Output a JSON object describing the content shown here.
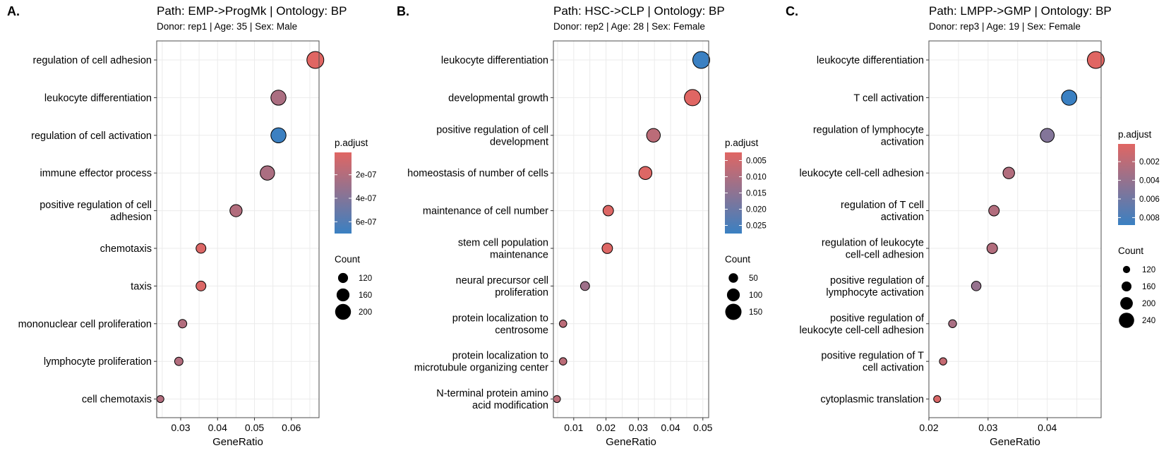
{
  "chart_data": [
    {
      "type": "scatter",
      "panel_label": "A.",
      "title": "Path:  EMP->ProgMk | Ontology:  BP",
      "subtitle": "Donor: rep1 | Age: 35 | Sex: Male",
      "xlabel": "GeneRatio",
      "xlim": [
        0.0235,
        0.0675
      ],
      "xticks": [
        0.03,
        0.04,
        0.05,
        0.06
      ],
      "xtick_labels": [
        "0.03",
        "0.04",
        "0.05",
        "0.06"
      ],
      "terms": [
        {
          "label": [
            "regulation of cell adhesion"
          ],
          "x": 0.0665,
          "count": 215,
          "p": 1e-08
        },
        {
          "label": [
            "leukocyte differentiation"
          ],
          "x": 0.0565,
          "count": 190,
          "p": 2.3e-07
        },
        {
          "label": [
            "regulation of cell activation"
          ],
          "x": 0.0565,
          "count": 190,
          "p": 6.9e-07
        },
        {
          "label": [
            "immune effector process"
          ],
          "x": 0.0535,
          "count": 180,
          "p": 2.3e-07
        },
        {
          "label": [
            "positive regulation of cell",
            "adhesion"
          ],
          "x": 0.045,
          "count": 150,
          "p": 2e-07
        },
        {
          "label": [
            "chemotaxis"
          ],
          "x": 0.0355,
          "count": 118,
          "p": 3e-08
        },
        {
          "label": [
            "taxis"
          ],
          "x": 0.0355,
          "count": 118,
          "p": 3e-08
        },
        {
          "label": [
            "mononuclear cell proliferation"
          ],
          "x": 0.0305,
          "count": 100,
          "p": 2e-07
        },
        {
          "label": [
            "lymphocyte proliferation"
          ],
          "x": 0.0295,
          "count": 98,
          "p": 2e-07
        },
        {
          "label": [
            "cell chemotaxis"
          ],
          "x": 0.0245,
          "count": 80,
          "p": 2e-07
        }
      ],
      "color_legend": {
        "title": "p.adjust",
        "min": 1e-08,
        "max": 7e-07,
        "ticks": [
          2e-07,
          4e-07,
          6e-07
        ],
        "tick_labels": [
          "2e-07",
          "4e-07",
          "6e-07"
        ]
      },
      "size_legend": {
        "title": "Count",
        "values": [
          120,
          160,
          200
        ],
        "labels": [
          "120",
          "160",
          "200"
        ],
        "range": [
          80,
          215
        ]
      }
    },
    {
      "type": "scatter",
      "panel_label": "B.",
      "title": "Path:  HSC->CLP | Ontology:  BP",
      "subtitle": "Donor: rep2 | Age: 28 | Sex: Female",
      "xlabel": "GeneRatio",
      "xlim": [
        0.0037,
        0.0518
      ],
      "xticks": [
        0.01,
        0.02,
        0.03,
        0.04,
        0.05
      ],
      "xtick_labels": [
        "0.01",
        "0.02",
        "0.03",
        "0.04",
        "0.05"
      ],
      "terms": [
        {
          "label": [
            "leukocyte differentiation"
          ],
          "x": 0.0495,
          "count": 160,
          "p": 0.0275
        },
        {
          "label": [
            "developmental growth"
          ],
          "x": 0.0468,
          "count": 150,
          "p": 0.0025
        },
        {
          "label": [
            "positive regulation of cell",
            "development"
          ],
          "x": 0.0347,
          "count": 112,
          "p": 0.008
        },
        {
          "label": [
            "homeostasis of number of cells"
          ],
          "x": 0.0322,
          "count": 103,
          "p": 0.003
        },
        {
          "label": [
            "maintenance of cell number"
          ],
          "x": 0.0207,
          "count": 65,
          "p": 0.003
        },
        {
          "label": [
            "stem cell population",
            "maintenance"
          ],
          "x": 0.0204,
          "count": 65,
          "p": 0.003
        },
        {
          "label": [
            "neural precursor cell",
            "proliferation"
          ],
          "x": 0.0135,
          "count": 44,
          "p": 0.0125
        },
        {
          "label": [
            "protein localization to",
            "centrosome"
          ],
          "x": 0.0067,
          "count": 21,
          "p": 0.008
        },
        {
          "label": [
            "protein localization to",
            "microtubule organizing center"
          ],
          "x": 0.0067,
          "count": 21,
          "p": 0.008
        },
        {
          "label": [
            "N-terminal protein amino",
            "acid modification"
          ],
          "x": 0.0048,
          "count": 15,
          "p": 0.008
        }
      ],
      "color_legend": {
        "title": "p.adjust",
        "min": 0.0025,
        "max": 0.0275,
        "ticks": [
          0.005,
          0.01,
          0.015,
          0.02,
          0.025
        ],
        "tick_labels": [
          "0.005",
          "0.010",
          "0.015",
          "0.020",
          "0.025"
        ]
      },
      "size_legend": {
        "title": "Count",
        "values": [
          50,
          100,
          150
        ],
        "labels": [
          "50",
          "100",
          "150"
        ],
        "range": [
          15,
          160
        ]
      }
    },
    {
      "type": "scatter",
      "panel_label": "C.",
      "title": "Path:  LMPP->GMP | Ontology:  BP",
      "subtitle": "Donor: rep3 | Age: 19 | Sex: Female",
      "xlabel": "GeneRatio",
      "xlim": [
        0.02,
        0.0491
      ],
      "xticks": [
        0.02,
        0.03,
        0.04
      ],
      "xtick_labels": [
        "0.02",
        "0.03",
        "0.04"
      ],
      "terms": [
        {
          "label": [
            "leukocyte differentiation"
          ],
          "x": 0.0482,
          "count": 265,
          "p": 0.0001
        },
        {
          "label": [
            "T cell activation"
          ],
          "x": 0.0437,
          "count": 240,
          "p": 0.0088
        },
        {
          "label": [
            "regulation of lymphocyte",
            "activation"
          ],
          "x": 0.04,
          "count": 220,
          "p": 0.005
        },
        {
          "label": [
            "leukocyte cell-cell adhesion"
          ],
          "x": 0.0335,
          "count": 185,
          "p": 0.0025
        },
        {
          "label": [
            "regulation of T cell",
            "activation"
          ],
          "x": 0.031,
          "count": 170,
          "p": 0.0025
        },
        {
          "label": [
            "regulation of leukocyte",
            "cell-cell adhesion"
          ],
          "x": 0.0307,
          "count": 170,
          "p": 0.0025
        },
        {
          "label": [
            "positive regulation of",
            "lymphocyte activation"
          ],
          "x": 0.028,
          "count": 155,
          "p": 0.004
        },
        {
          "label": [
            "positive regulation of",
            "leukocyte cell-cell adhesion"
          ],
          "x": 0.024,
          "count": 132,
          "p": 0.003
        },
        {
          "label": [
            "positive regulation of T",
            "cell activation"
          ],
          "x": 0.0224,
          "count": 123,
          "p": 0.0015
        },
        {
          "label": [
            "cytoplasmic translation"
          ],
          "x": 0.0214,
          "count": 118,
          "p": 0.0005
        }
      ],
      "color_legend": {
        "title": "p.adjust",
        "min": 0.0001,
        "max": 0.0088,
        "ticks": [
          0.002,
          0.004,
          0.006,
          0.008
        ],
        "tick_labels": [
          "0.002",
          "0.004",
          "0.006",
          "0.008"
        ]
      },
      "size_legend": {
        "title": "Count",
        "values": [
          120,
          160,
          200,
          240
        ],
        "labels": [
          "120",
          "160",
          "200",
          "240"
        ],
        "range": [
          118,
          265
        ]
      }
    }
  ],
  "colors": {
    "low_p": "#e06663",
    "high_p": "#3a80c2",
    "grid": "#ebebeb",
    "panel_border": "#4d4d4d",
    "point_stroke": "#000000"
  }
}
